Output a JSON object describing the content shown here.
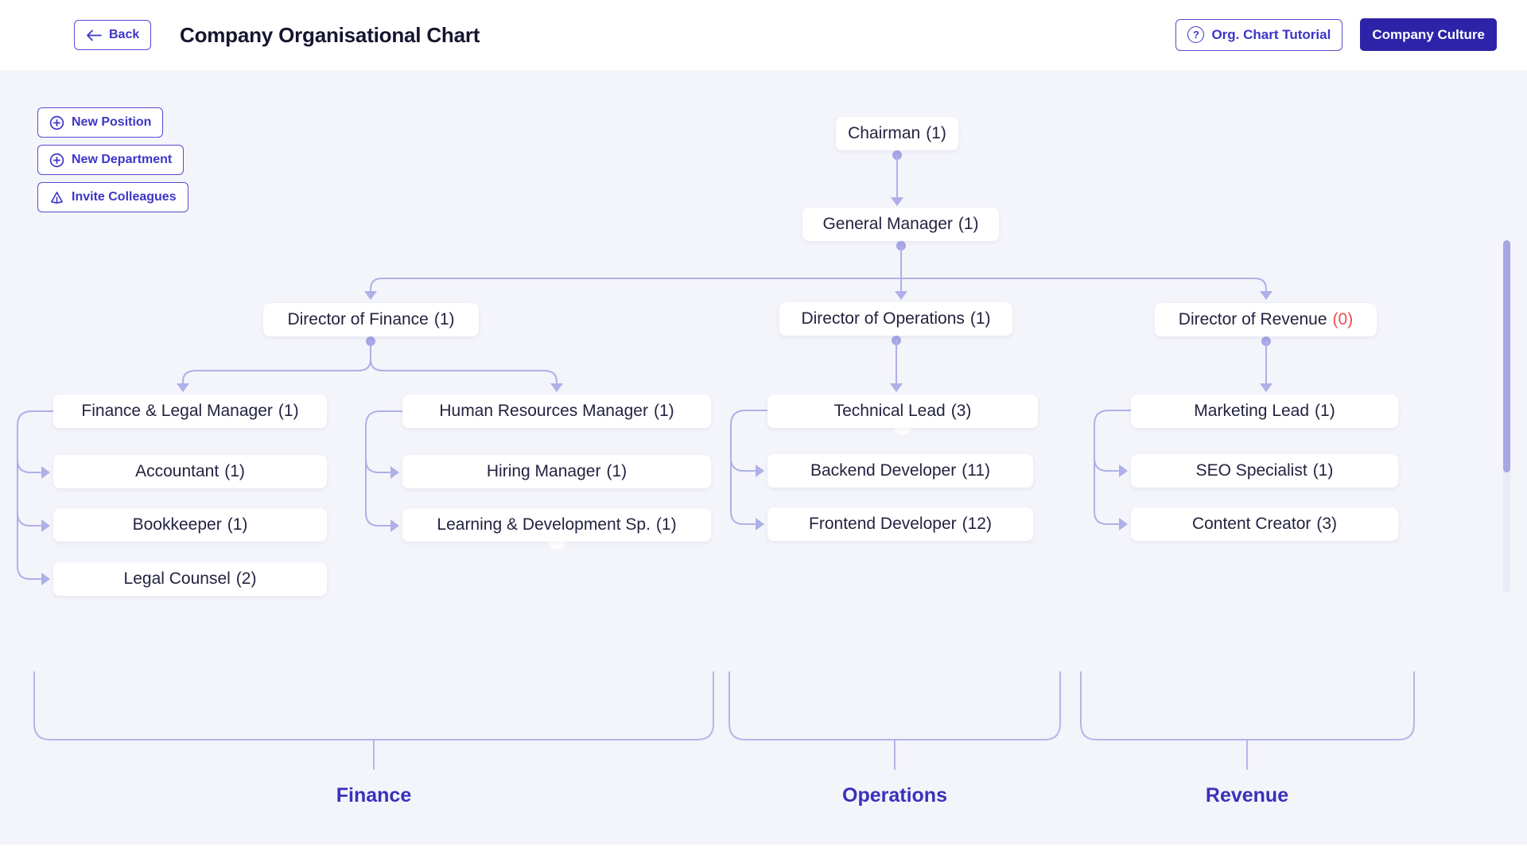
{
  "header": {
    "back_label": "Back",
    "title": "Company Organisational Chart",
    "tutorial_label": "Org. Chart Tutorial",
    "culture_label": "Company Culture",
    "icons": [
      "arrow-left-icon",
      "help-circle-icon"
    ]
  },
  "sidebar_actions": [
    {
      "id": "new-position",
      "label": "New Position",
      "icon": "plus-circle-icon"
    },
    {
      "id": "new-department",
      "label": "New Department",
      "icon": "plus-circle-icon"
    },
    {
      "id": "invite-colleagues",
      "label": "Invite Colleagues",
      "icon": "send-icon"
    }
  ],
  "org_chart": {
    "nodes": [
      {
        "id": "chairman",
        "title": "Chairman",
        "count": "(1)"
      },
      {
        "id": "general-manager",
        "title": "General Manager",
        "count": "(1)"
      },
      {
        "id": "director-finance",
        "title": "Director of Finance",
        "count": "(1)"
      },
      {
        "id": "director-operations",
        "title": "Director of Operations",
        "count": "(1)"
      },
      {
        "id": "director-revenue",
        "title": "Director of Revenue",
        "count": "(0)",
        "count_alert": true
      },
      {
        "id": "finance-legal-manager",
        "title": "Finance & Legal Manager",
        "count": "(1)"
      },
      {
        "id": "accountant",
        "title": "Accountant",
        "count": "(1)"
      },
      {
        "id": "bookkeeper",
        "title": "Bookkeeper",
        "count": "(1)"
      },
      {
        "id": "legal-counsel",
        "title": "Legal Counsel",
        "count": "(2)"
      },
      {
        "id": "hr-manager",
        "title": "Human Resources Manager",
        "count": "(1)"
      },
      {
        "id": "hiring-manager",
        "title": "Hiring Manager",
        "count": "(1)"
      },
      {
        "id": "learning-development",
        "title": "Learning & Development Sp.",
        "count": "(1)"
      },
      {
        "id": "technical-lead",
        "title": "Technical Lead",
        "count": "(3)"
      },
      {
        "id": "backend-developer",
        "title": "Backend Developer",
        "count": "(11)"
      },
      {
        "id": "frontend-developer",
        "title": "Frontend Developer",
        "count": "(12)"
      },
      {
        "id": "marketing-lead",
        "title": "Marketing Lead",
        "count": "(1)"
      },
      {
        "id": "seo-specialist",
        "title": "SEO Specialist",
        "count": "(1)"
      },
      {
        "id": "content-creator",
        "title": "Content Creator",
        "count": "(3)"
      }
    ],
    "departments": [
      {
        "id": "finance",
        "label": "Finance"
      },
      {
        "id": "operations",
        "label": "Operations"
      },
      {
        "id": "revenue",
        "label": "Revenue"
      }
    ]
  },
  "colors": {
    "accent": "#3d35c8",
    "accent_solid_button": "#2d23a8",
    "connector": "#aeb0e8",
    "node_text": "#232340",
    "alert_red": "#ee4b51",
    "canvas_bg": "#f4f4fb",
    "department_label": "#3a31bb"
  }
}
